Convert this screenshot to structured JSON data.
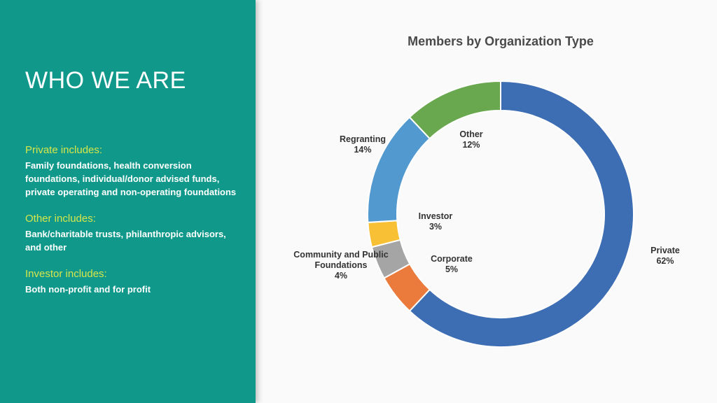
{
  "slide": {
    "title": "WHO WE ARE",
    "notes": [
      {
        "heading": "Private includes:",
        "body": "Family foundations, health conversion foundations, individual/donor advised funds, private operating and non-operating foundations"
      },
      {
        "heading": "Other includes:",
        "body": "Bank/charitable trusts, philanthropic advisors, and other"
      },
      {
        "heading": "Investor includes:",
        "body": "Both non-profit and for profit"
      }
    ]
  },
  "chart_data": {
    "type": "pie",
    "title": "Members by Organization Type",
    "donut": true,
    "categories": [
      "Private",
      "Corporate",
      "Community and Public Foundations",
      "Investor",
      "Regranting",
      "Other"
    ],
    "values": [
      62,
      5,
      4,
      3,
      14,
      12
    ],
    "value_labels": [
      "62%",
      "5%",
      "4%",
      "3%",
      "14%",
      "12%"
    ],
    "colors": [
      "#3d6db3",
      "#ea7b3c",
      "#a5a5a5",
      "#f7c035",
      "#5199cf",
      "#6aa84f"
    ],
    "legend": "none"
  }
}
